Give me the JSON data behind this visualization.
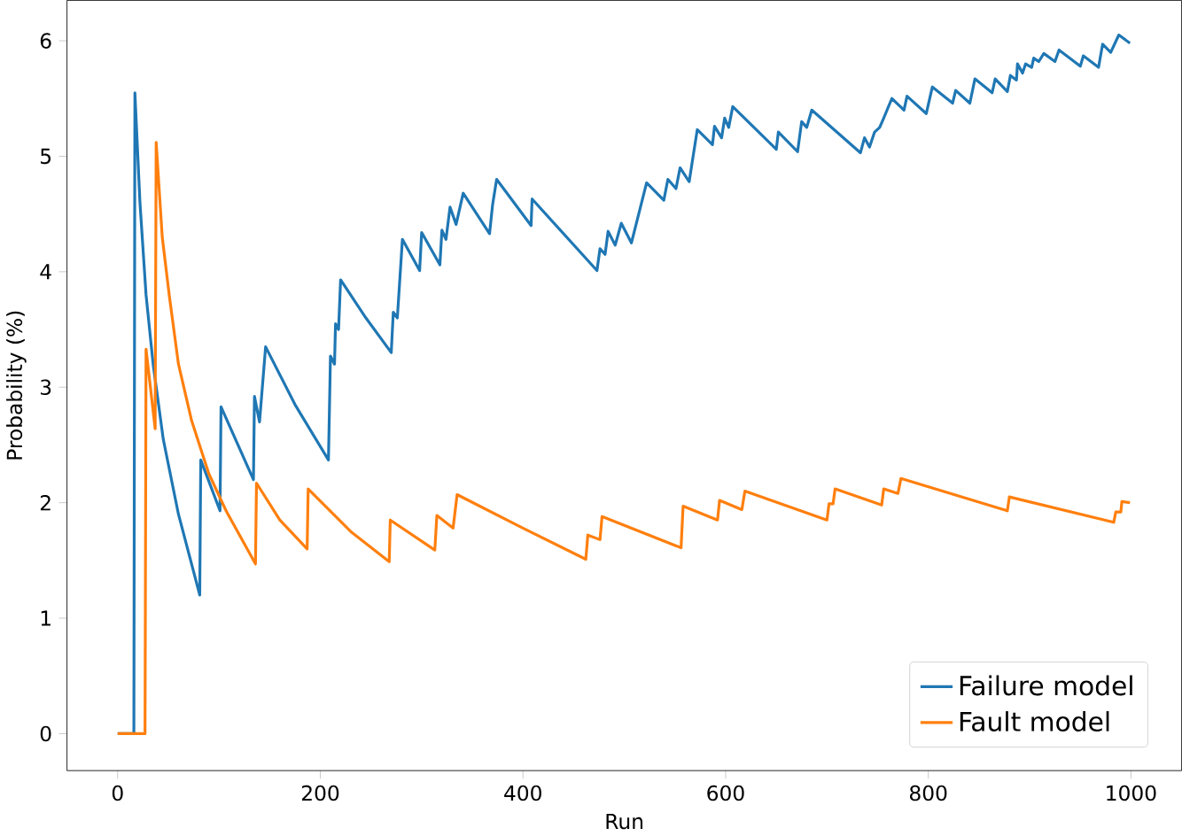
{
  "chart_data": {
    "type": "line",
    "xlabel": "Run",
    "ylabel": "Probability (%)",
    "xlim": [
      -50,
      1050
    ],
    "ylim": [
      -0.32,
      6.35
    ],
    "xticks": [
      0,
      200,
      400,
      600,
      800,
      1000
    ],
    "yticks": [
      0,
      1,
      2,
      3,
      4,
      5,
      6
    ],
    "grid": false,
    "legend": "bottom right",
    "marker": "none",
    "line_style": "solid",
    "series": [
      {
        "name": "Failure model",
        "color": "#1f77b4",
        "x": [
          0,
          16,
          17,
          22,
          28,
          35,
          45,
          60,
          81,
          82,
          101,
          102,
          134,
          135,
          140,
          146,
          175,
          208,
          209,
          210,
          214,
          215,
          218,
          220,
          245,
          270,
          272,
          276,
          281,
          298,
          300,
          318,
          320,
          324,
          328,
          334,
          341,
          367,
          370,
          374,
          408,
          409,
          473,
          476,
          481,
          484,
          491,
          497,
          507,
          522,
          539,
          543,
          551,
          555,
          564,
          567,
          572,
          587,
          589,
          596,
          599,
          603,
          607,
          650,
          652,
          671,
          675,
          680,
          685,
          733,
          737,
          742,
          747,
          752,
          756,
          764,
          776,
          779,
          798,
          804,
          824,
          827,
          841,
          846,
          863,
          866,
          878,
          881,
          887,
          888,
          893,
          896,
          902,
          904,
          909,
          914,
          925,
          929,
          950,
          953,
          968,
          972,
          980,
          988,
          999
        ],
        "values": [
          0,
          0,
          5.55,
          4.6,
          3.8,
          3.2,
          2.55,
          1.9,
          1.2,
          2.37,
          1.93,
          2.83,
          2.2,
          2.92,
          2.7,
          3.35,
          2.85,
          2.37,
          2.81,
          3.27,
          3.2,
          3.55,
          3.5,
          3.93,
          3.6,
          3.3,
          3.65,
          3.6,
          4.28,
          4.01,
          4.34,
          4.06,
          4.36,
          4.28,
          4.56,
          4.41,
          4.68,
          4.33,
          4.58,
          4.8,
          4.4,
          4.63,
          4.01,
          4.2,
          4.15,
          4.35,
          4.23,
          4.42,
          4.25,
          4.77,
          4.62,
          4.8,
          4.72,
          4.9,
          4.78,
          4.95,
          5.23,
          5.1,
          5.26,
          5.16,
          5.33,
          5.25,
          5.43,
          5.06,
          5.21,
          5.04,
          5.3,
          5.25,
          5.4,
          5.03,
          5.16,
          5.08,
          5.21,
          5.25,
          5.33,
          5.5,
          5.4,
          5.52,
          5.37,
          5.6,
          5.46,
          5.57,
          5.46,
          5.67,
          5.55,
          5.67,
          5.56,
          5.7,
          5.66,
          5.8,
          5.72,
          5.8,
          5.77,
          5.85,
          5.82,
          5.89,
          5.82,
          5.92,
          5.78,
          5.87,
          5.77,
          5.97,
          5.9,
          6.05,
          5.98
        ]
      },
      {
        "name": "Fault model",
        "color": "#ff7f0e",
        "x": [
          0,
          27,
          28,
          37,
          38,
          44,
          51,
          60,
          73,
          90,
          107,
          136,
          137,
          160,
          187,
          188,
          230,
          268,
          269,
          313,
          315,
          331,
          335,
          400,
          462,
          464,
          476,
          478,
          556,
          558,
          592,
          594,
          616,
          619,
          700,
          702,
          706,
          708,
          754,
          756,
          770,
          773,
          878,
          880,
          983,
          985,
          990,
          991,
          999
        ],
        "values": [
          0,
          0,
          3.33,
          2.64,
          5.12,
          4.3,
          3.79,
          3.2,
          2.71,
          2.25,
          1.93,
          1.47,
          2.17,
          1.85,
          1.6,
          2.12,
          1.75,
          1.49,
          1.85,
          1.59,
          1.89,
          1.78,
          2.07,
          1.78,
          1.51,
          1.72,
          1.68,
          1.88,
          1.61,
          1.97,
          1.85,
          2.02,
          1.94,
          2.1,
          1.85,
          1.99,
          1.99,
          2.12,
          1.98,
          2.12,
          2.08,
          2.21,
          1.93,
          2.05,
          1.83,
          1.92,
          1.92,
          2.01,
          2.0
        ]
      }
    ]
  }
}
